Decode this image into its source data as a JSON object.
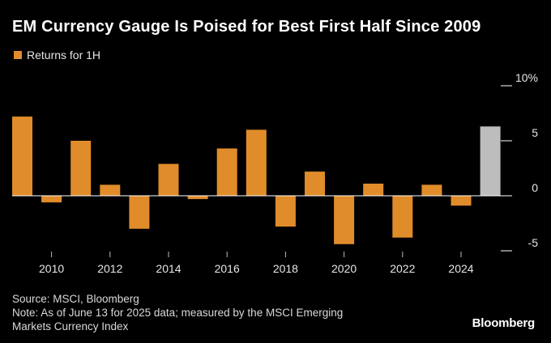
{
  "title": "EM Currency Gauge Is Poised for Best First Half Since 2009",
  "legend_label": "Returns for 1H",
  "colors": {
    "bar": "#e08c2a",
    "highlight": "#bdbdbd",
    "background": "#000000",
    "axis": "#ffffff"
  },
  "source": "Source: MSCI, Bloomberg",
  "note_line1": "Note: As of June 13 for 2025 data; measured by the MSCI Emerging",
  "note_line2": "Markets Currency Index",
  "brand": "Bloomberg",
  "chart_data": {
    "type": "bar",
    "title": "EM Currency Gauge Is Poised for Best First Half Since 2009",
    "categories": [
      "2009",
      "2010",
      "2011",
      "2012",
      "2013",
      "2014",
      "2015",
      "2016",
      "2017",
      "2018",
      "2019",
      "2020",
      "2021",
      "2022",
      "2023",
      "2024",
      "2025"
    ],
    "series": [
      {
        "name": "Returns for 1H",
        "values": [
          7.2,
          -0.6,
          5.0,
          1.0,
          -3.0,
          2.9,
          -0.3,
          4.3,
          6.0,
          -2.8,
          2.2,
          -4.4,
          1.1,
          -3.8,
          1.0,
          -0.9,
          6.3
        ]
      }
    ],
    "highlight_category": "2025",
    "x_tick_labels": [
      "2010",
      "2012",
      "2014",
      "2016",
      "2018",
      "2020",
      "2022",
      "2024"
    ],
    "y_tick_labels": [
      "10%",
      "5",
      "0",
      "-5"
    ],
    "y_ticks": [
      10,
      5,
      0,
      -5
    ],
    "ylim": [
      -5,
      10
    ],
    "y_axis_side": "right",
    "grid": false,
    "legend_position": "top-left"
  }
}
